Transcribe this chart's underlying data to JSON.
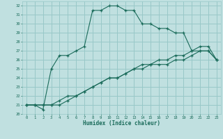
{
  "xlabel": "Humidex (Indice chaleur)",
  "bg_color": "#c0e0e0",
  "grid_color": "#98c8c8",
  "line_color": "#1a6b5a",
  "xlim": [
    -0.5,
    23.5
  ],
  "ylim": [
    20,
    32.5
  ],
  "xticks": [
    0,
    1,
    2,
    3,
    4,
    5,
    6,
    7,
    8,
    9,
    10,
    11,
    12,
    13,
    14,
    15,
    16,
    17,
    18,
    19,
    20,
    21,
    22,
    23
  ],
  "yticks": [
    20,
    21,
    22,
    23,
    24,
    25,
    26,
    27,
    28,
    29,
    30,
    31,
    32
  ],
  "series1_x": [
    0,
    1,
    2,
    3,
    4,
    5,
    6,
    7,
    8,
    9,
    10,
    11,
    12,
    13,
    14,
    15,
    16,
    17,
    18,
    19,
    20,
    21,
    22,
    23
  ],
  "series1_y": [
    21,
    21,
    20.5,
    25,
    26.5,
    26.5,
    27,
    27.5,
    31.5,
    31.5,
    32,
    32,
    31.5,
    31.5,
    30,
    30,
    29.5,
    29.5,
    29,
    29,
    27,
    27,
    27,
    26
  ],
  "series2_x": [
    0,
    1,
    2,
    3,
    4,
    5,
    6,
    7,
    8,
    9,
    10,
    11,
    12,
    13,
    14,
    15,
    16,
    17,
    18,
    19,
    20,
    21,
    22,
    23
  ],
  "series2_y": [
    21,
    21,
    21,
    21,
    21.5,
    22,
    22,
    22.5,
    23,
    23.5,
    24,
    24,
    24.5,
    25,
    25.5,
    25.5,
    26,
    26,
    26.5,
    26.5,
    27,
    27.5,
    27.5,
    26
  ],
  "series3_x": [
    0,
    1,
    2,
    3,
    4,
    5,
    6,
    7,
    8,
    9,
    10,
    11,
    12,
    13,
    14,
    15,
    16,
    17,
    18,
    19,
    20,
    21,
    22,
    23
  ],
  "series3_y": [
    21,
    21,
    21,
    21,
    21,
    21.5,
    22,
    22.5,
    23,
    23.5,
    24,
    24,
    24.5,
    25,
    25,
    25.5,
    25.5,
    25.5,
    26,
    26,
    26.5,
    27,
    27,
    26
  ]
}
